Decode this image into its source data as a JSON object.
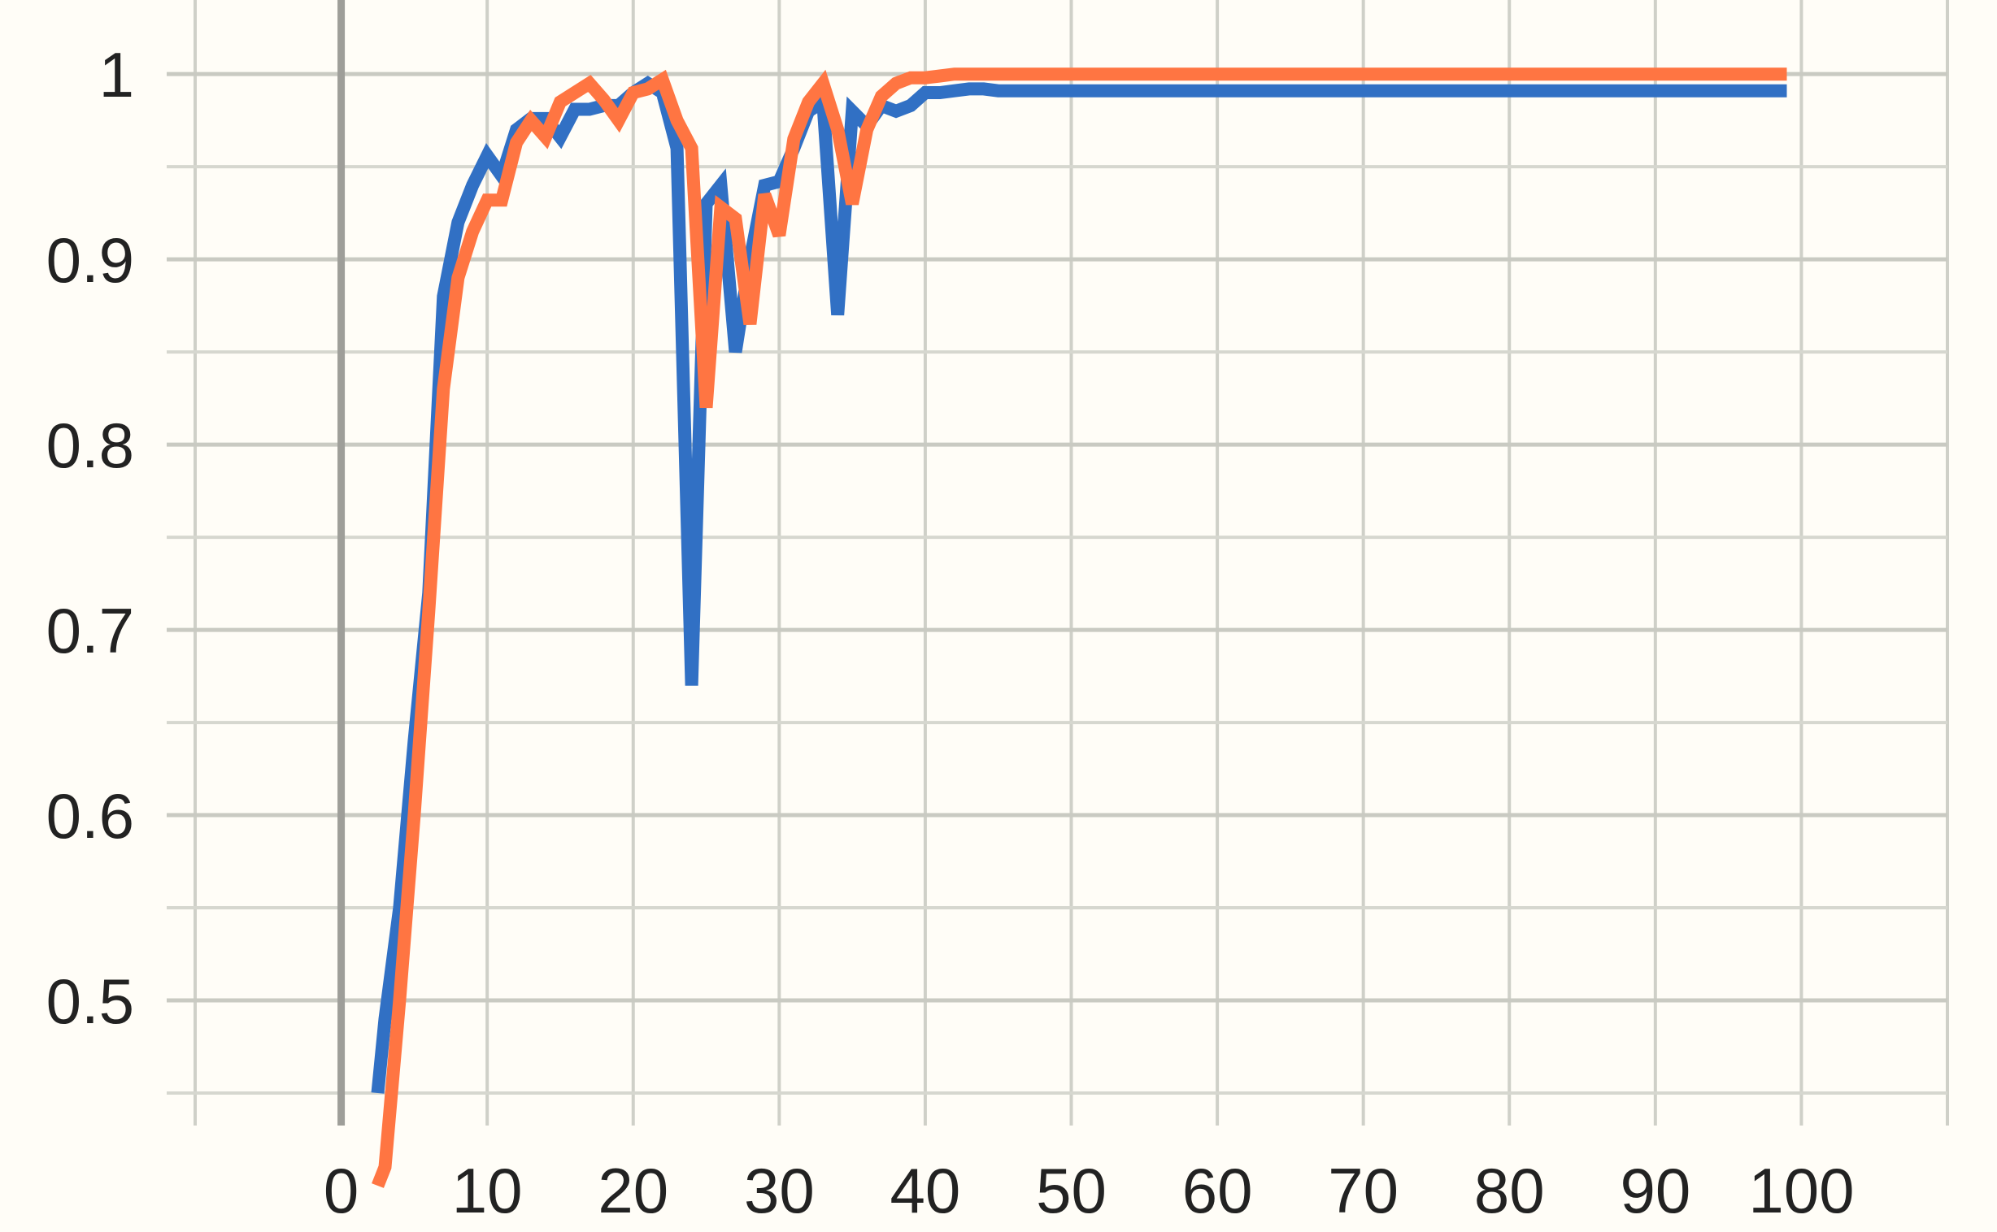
{
  "chart_data": {
    "type": "line",
    "title": "",
    "xlabel": "",
    "ylabel": "",
    "xlim": [
      -10,
      110
    ],
    "ylim": [
      0.45,
      1.04
    ],
    "grid": true,
    "x_ticks": [
      0,
      10,
      20,
      30,
      40,
      50,
      60,
      70,
      80,
      90,
      100
    ],
    "x_tick_labels": [
      "0",
      "10",
      "20",
      "30",
      "40",
      "50",
      "60",
      "70",
      "80",
      "90",
      "100"
    ],
    "y_ticks": [
      0.5,
      0.6,
      0.7,
      0.8,
      0.9,
      1
    ],
    "y_tick_labels": [
      "0.5",
      "0.6",
      "0.7",
      "0.8",
      "0.9",
      "1"
    ],
    "x": [
      2.5,
      3,
      4,
      5,
      6,
      7,
      8,
      9,
      10,
      11,
      12,
      13,
      14,
      15,
      16,
      17,
      18,
      19,
      20,
      21,
      22,
      23,
      24,
      25,
      26,
      27,
      28,
      29,
      30,
      31,
      32,
      33,
      34,
      35,
      36,
      37,
      38,
      39,
      40,
      41,
      42,
      43,
      44,
      45,
      50,
      55,
      60,
      65,
      70,
      75,
      80,
      85,
      90,
      95,
      99
    ],
    "series": [
      {
        "color": "#3170c4",
        "values": [
          0.45,
          0.49,
          0.55,
          0.64,
          0.72,
          0.88,
          0.92,
          0.94,
          0.956,
          0.945,
          0.97,
          0.976,
          0.976,
          0.966,
          0.981,
          0.981,
          0.983,
          0.983,
          0.99,
          0.995,
          0.99,
          0.96,
          0.67,
          0.93,
          0.94,
          0.85,
          0.9,
          0.94,
          0.942,
          0.96,
          0.98,
          0.985,
          0.87,
          0.98,
          0.972,
          0.983,
          0.98,
          0.983,
          0.99,
          0.99,
          0.991,
          0.992,
          0.992,
          0.991,
          0.991,
          0.991,
          0.991,
          0.991,
          0.991,
          0.991,
          0.991,
          0.991,
          0.991,
          0.991,
          0.991
        ]
      },
      {
        "color": "#ff7542",
        "values": [
          0.4,
          0.41,
          0.5,
          0.6,
          0.71,
          0.83,
          0.89,
          0.915,
          0.932,
          0.932,
          0.963,
          0.975,
          0.966,
          0.985,
          0.99,
          0.995,
          0.986,
          0.975,
          0.99,
          0.992,
          0.997,
          0.975,
          0.96,
          0.82,
          0.928,
          0.922,
          0.865,
          0.935,
          0.913,
          0.965,
          0.985,
          0.995,
          0.97,
          0.93,
          0.97,
          0.988,
          0.995,
          0.998,
          0.998,
          0.999,
          1,
          1,
          1,
          1,
          1,
          1,
          1,
          1,
          1,
          1,
          1,
          1,
          1,
          1,
          1
        ]
      }
    ]
  }
}
